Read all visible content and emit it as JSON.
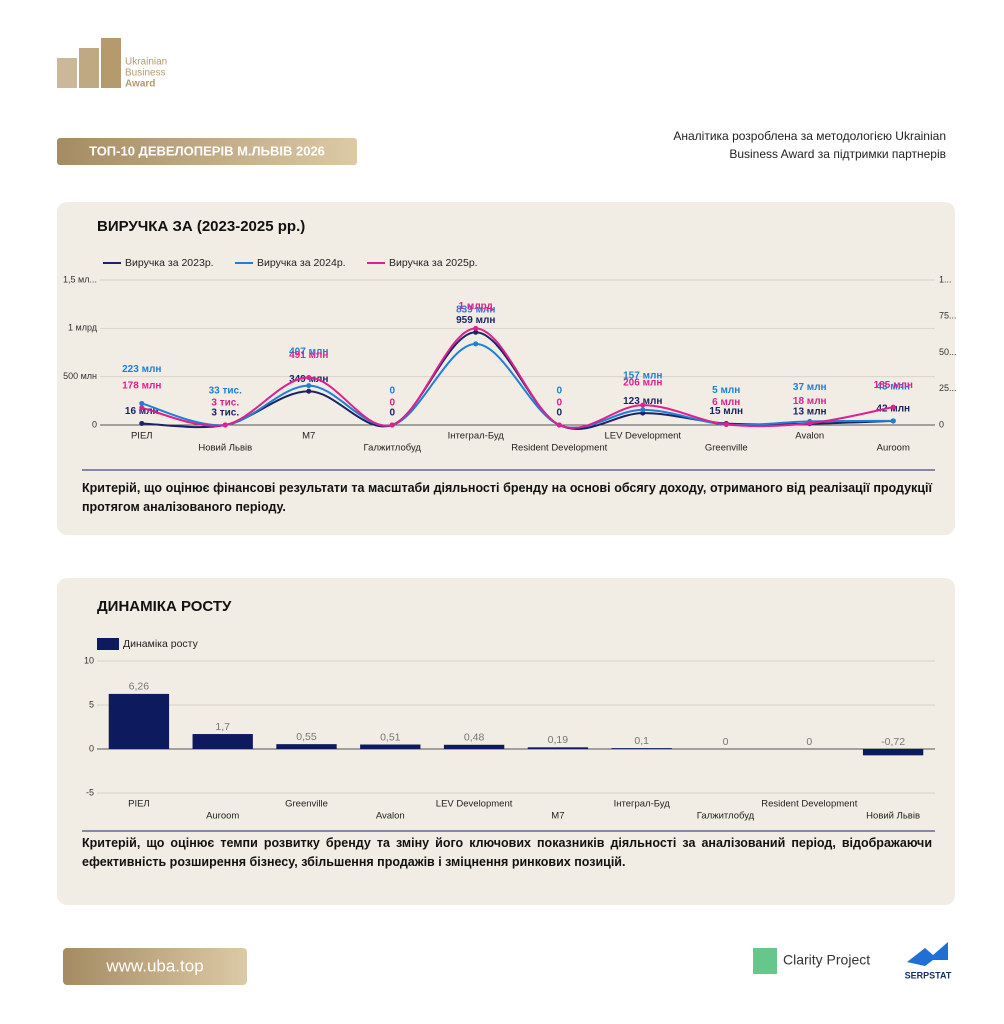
{
  "header": {
    "logo": [
      "Ukrainian",
      "Business",
      "Award"
    ],
    "badge": "ТОП-10 ДЕВЕЛОПЕРІВ М.ЛЬВІВ 2026",
    "note": [
      "Аналітика розроблена за методологією Ukrainian",
      "Business Award за підтримки партнерів"
    ]
  },
  "chart_data": [
    {
      "type": "line",
      "title": "ВИРУЧКА ЗА (2023-2025 рр.)",
      "categories": [
        "РІЕЛ",
        "Новий Львів",
        "M7",
        "Галжитлобуд",
        "Інтеграл-Буд",
        "Resident Development",
        "LEV Development",
        "Greenville",
        "Avalon",
        "Auroom"
      ],
      "series": [
        {
          "name": "Виручка за 2023р.",
          "color": "#1a2366",
          "values": [
            16000000,
            3000,
            349000000,
            0,
            959000000,
            0,
            123000000,
            15000000,
            13000000,
            42000000
          ],
          "value_labels": [
            "16 млн",
            "3 тис.",
            "349 млн",
            "0",
            "959 млн",
            "0",
            "123 млн",
            "15 млн",
            "13 млн",
            "42 млн"
          ]
        },
        {
          "name": "Виручка за 2024р.",
          "color": "#1e7fd6",
          "values": [
            223000000,
            33000,
            407000000,
            0,
            839000000,
            0,
            157000000,
            5000000,
            37000000,
            43000000
          ],
          "value_labels": [
            "223 млн",
            "33 тис.",
            "407 млн",
            "0",
            "839 млн",
            "0",
            "157 млн",
            "5 млн",
            "37 млн",
            "43 млн"
          ]
        },
        {
          "name": "Виручка за 2025р.",
          "color": "#e0208f",
          "values": [
            178000000,
            3000,
            491000000,
            0,
            1000000000,
            0,
            206000000,
            6000000,
            18000000,
            185000000
          ],
          "value_labels": [
            "178 млн",
            "3 тис.",
            "491 млн",
            "0",
            "1 млрд",
            "0",
            "206 млн",
            "6 млн",
            "18 млн",
            "185 млн"
          ]
        }
      ],
      "ylim": [
        0,
        1500000000
      ],
      "yticks": [
        0,
        {
          "value": 500000000,
          "label": "500 млн"
        },
        {
          "value": 1000000000,
          "label": "1 млрд"
        },
        {
          "value": 1500000000,
          "label": "1,5 мл..."
        }
      ],
      "y2lim": [
        0,
        100
      ],
      "y2ticks": [
        0,
        {
          "value": 25,
          "label": "25..."
        },
        {
          "value": 50,
          "label": "50..."
        },
        {
          "value": 75,
          "label": "75..."
        },
        {
          "value": 100,
          "label": "1..."
        }
      ],
      "grid": true,
      "legend": "top-left",
      "description": "Критерій, що оцінює фінансові результати та масштаби діяльності бренду на основі обсягу доходу, отриманого від реалізації продукції протягом аналізованого періоду."
    },
    {
      "type": "bar",
      "title": "ДИНАМІКА РОСТУ",
      "categories": [
        "РІЕЛ",
        "Auroom",
        "Greenville",
        "Avalon",
        "LEV Development",
        "M7",
        "Інтеграл-Буд",
        "Галжитлобуд",
        "Resident Development",
        "Новий Львів"
      ],
      "series": [
        {
          "name": "Динаміка росту",
          "color": "#0d1b5e",
          "values": [
            6.26,
            1.7,
            0.55,
            0.51,
            0.48,
            0.19,
            0.1,
            0,
            0,
            -0.72
          ],
          "value_labels": [
            "6,26",
            "1,7",
            "0,55",
            "0,51",
            "0,48",
            "0,19",
            "0,1",
            "0",
            "0",
            "-0,72"
          ]
        }
      ],
      "ylim": [
        -5,
        10
      ],
      "yticks": [
        -5,
        0,
        5,
        10
      ],
      "grid": true,
      "legend": "top-left",
      "description": "Критерій, що оцінює темпи розвитку бренду та зміну його ключових показників діяльності за аналізований період, відображаючи ефективність розширення бізнесу, збільшення продажів і зміцнення ринкових позицій."
    }
  ],
  "footer": {
    "site": "www.uba.top",
    "partners": [
      "Clarity Project",
      "SERPSTAT"
    ]
  }
}
